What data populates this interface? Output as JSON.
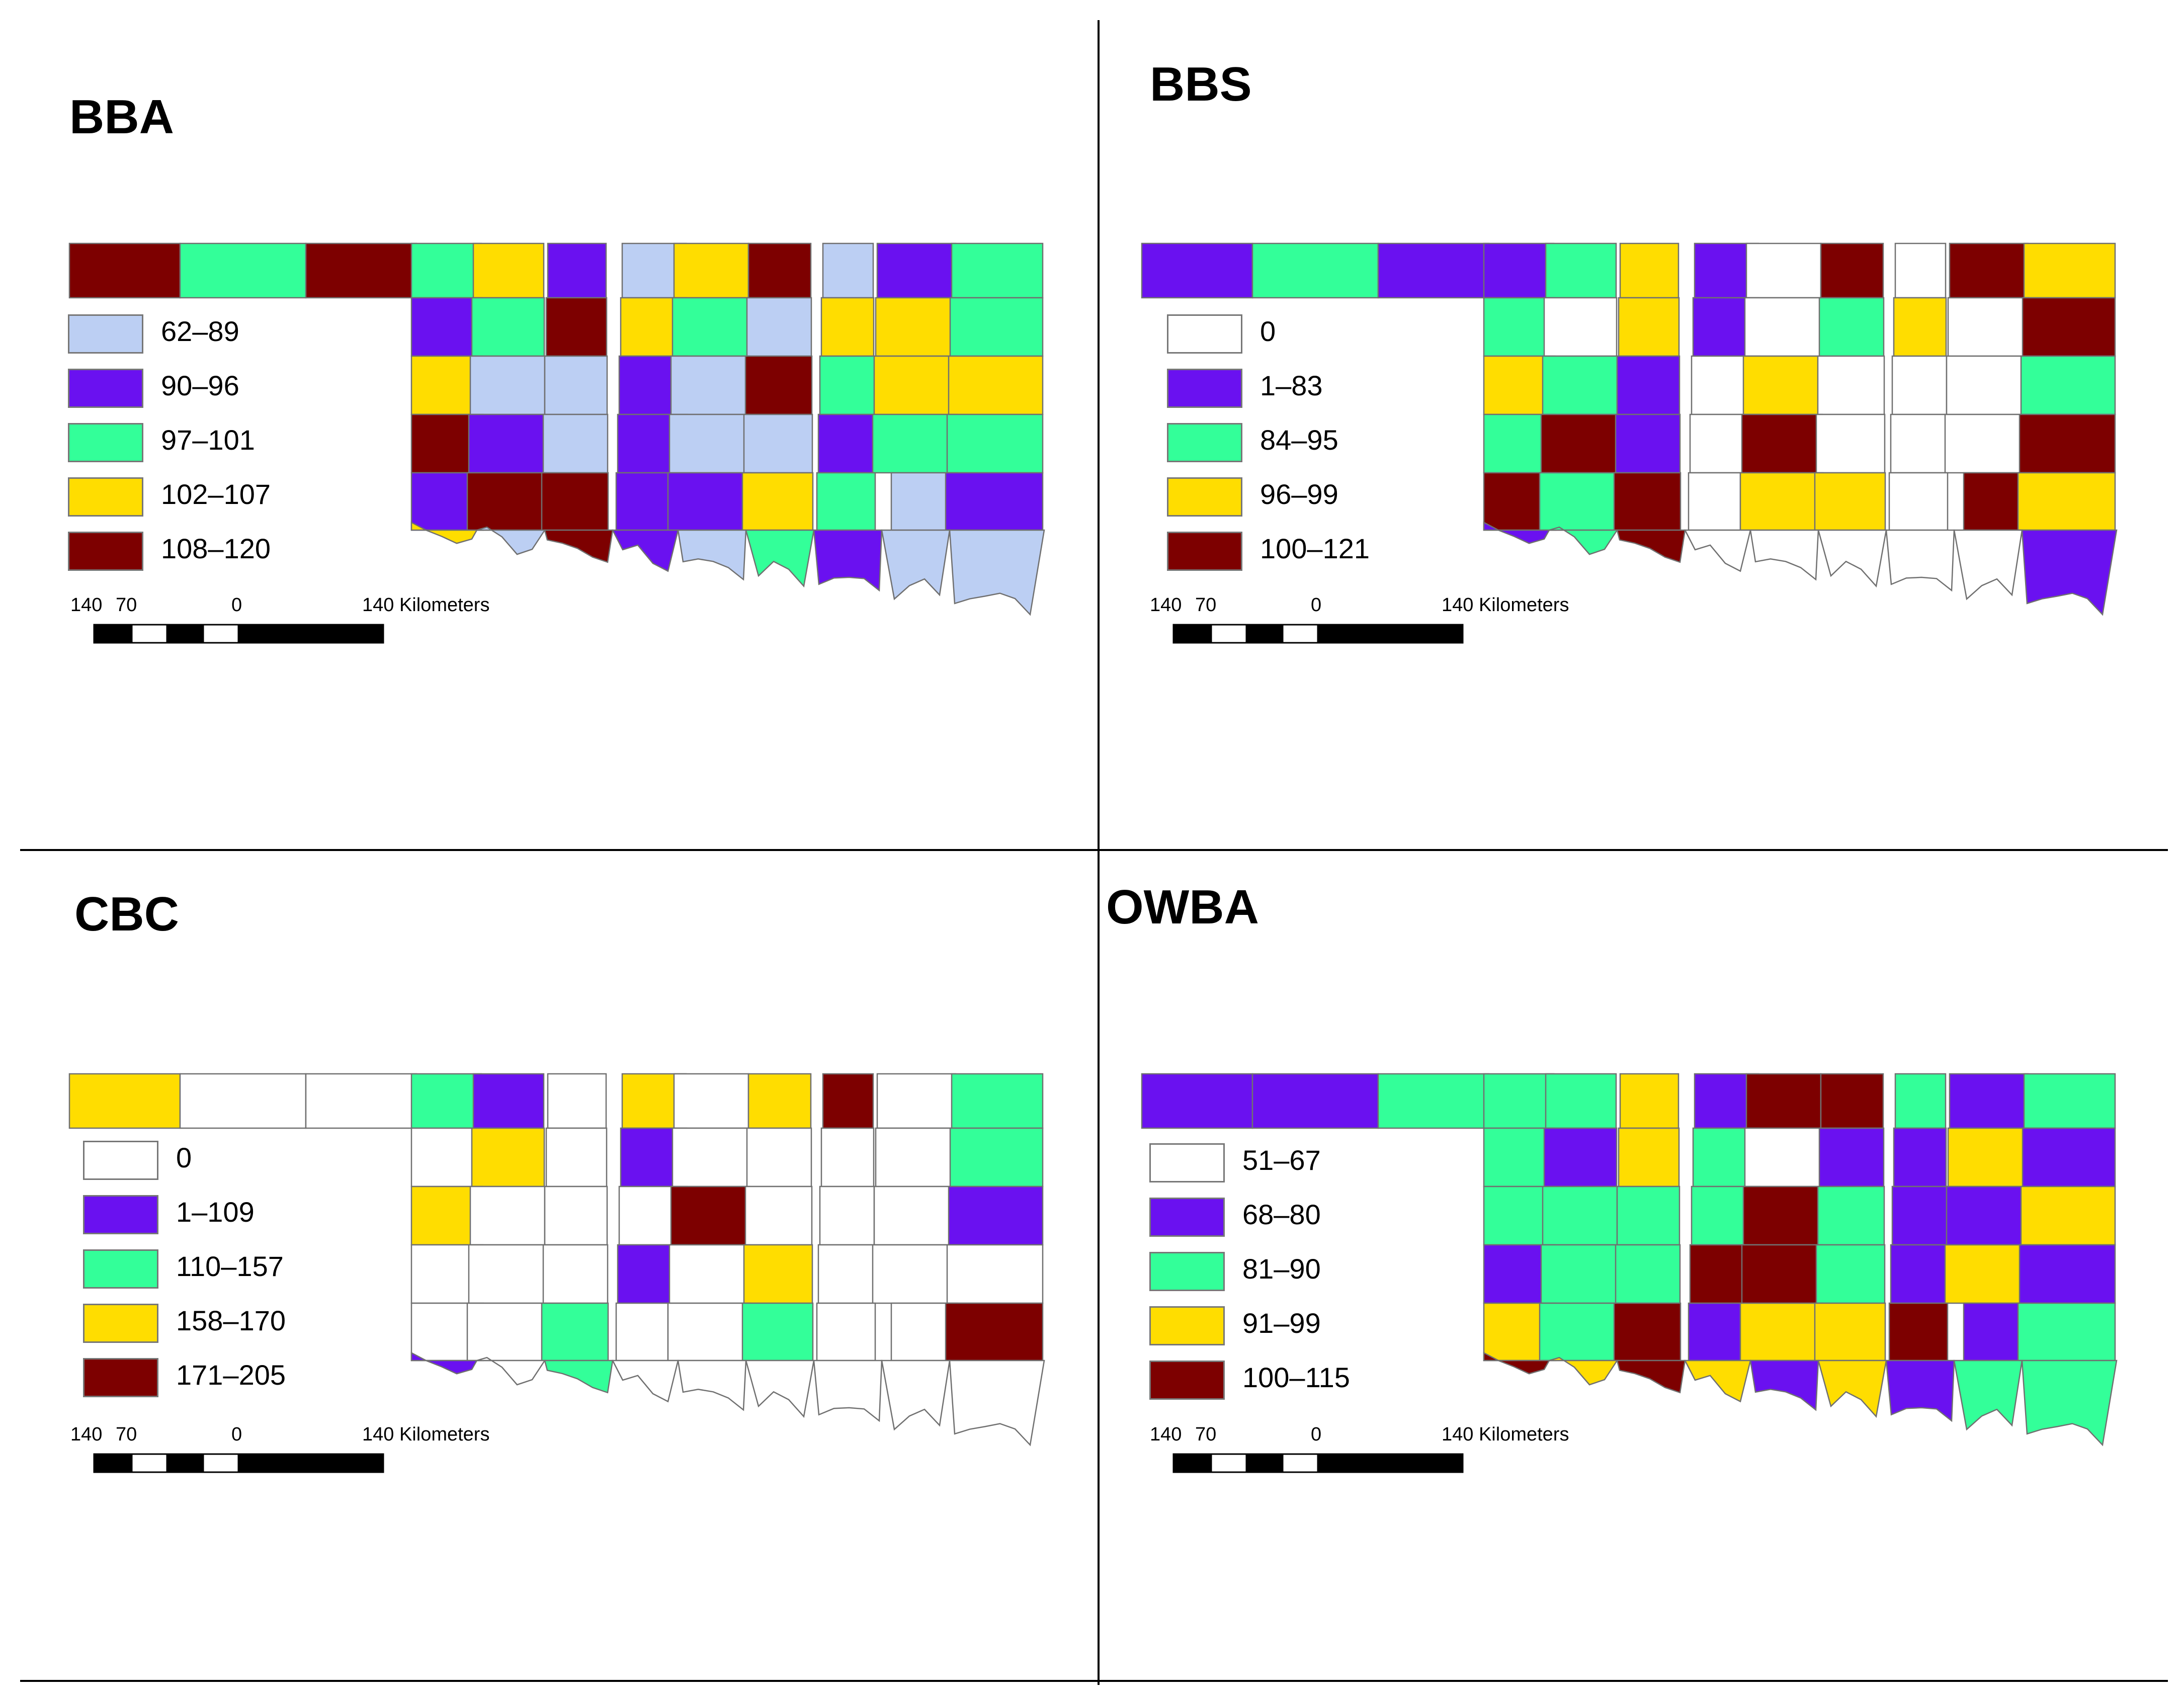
{
  "colors": {
    "light_blue": "#bccff3",
    "purple": "#6a11f0",
    "green": "#33ff99",
    "yellow": "#ffdd00",
    "dark_red": "#7d0000",
    "white": "#ffffff",
    "county_border": "#707070"
  },
  "scale_bar": {
    "ticks": [
      "140",
      "70",
      "0",
      "140 Kilometers"
    ]
  },
  "panels": [
    {
      "title": "BBA",
      "legend": [
        {
          "label": "62–89",
          "color_key": "light_blue"
        },
        {
          "label": "90–96",
          "color_key": "purple"
        },
        {
          "label": "97–101",
          "color_key": "green"
        },
        {
          "label": "102–107",
          "color_key": "yellow"
        },
        {
          "label": "108–120",
          "color_key": "dark_red"
        }
      ]
    },
    {
      "title": "BBS",
      "legend": [
        {
          "label": "0",
          "color_key": "white"
        },
        {
          "label": "1–83",
          "color_key": "purple"
        },
        {
          "label": "84–95",
          "color_key": "green"
        },
        {
          "label": "96–99",
          "color_key": "yellow"
        },
        {
          "label": "100–121",
          "color_key": "dark_red"
        }
      ]
    },
    {
      "title": "CBC",
      "legend": [
        {
          "label": "0",
          "color_key": "white"
        },
        {
          "label": "1–109",
          "color_key": "purple"
        },
        {
          "label": "110–157",
          "color_key": "green"
        },
        {
          "label": "158–170",
          "color_key": "yellow"
        },
        {
          "label": "171–205",
          "color_key": "dark_red"
        }
      ]
    },
    {
      "title": "OWBA",
      "legend": [
        {
          "label": "51–67",
          "color_key": "white"
        },
        {
          "label": "68–80",
          "color_key": "purple"
        },
        {
          "label": "81–90",
          "color_key": "green"
        },
        {
          "label": "91–99",
          "color_key": "yellow"
        },
        {
          "label": "100–115",
          "color_key": "dark_red"
        }
      ]
    }
  ]
}
